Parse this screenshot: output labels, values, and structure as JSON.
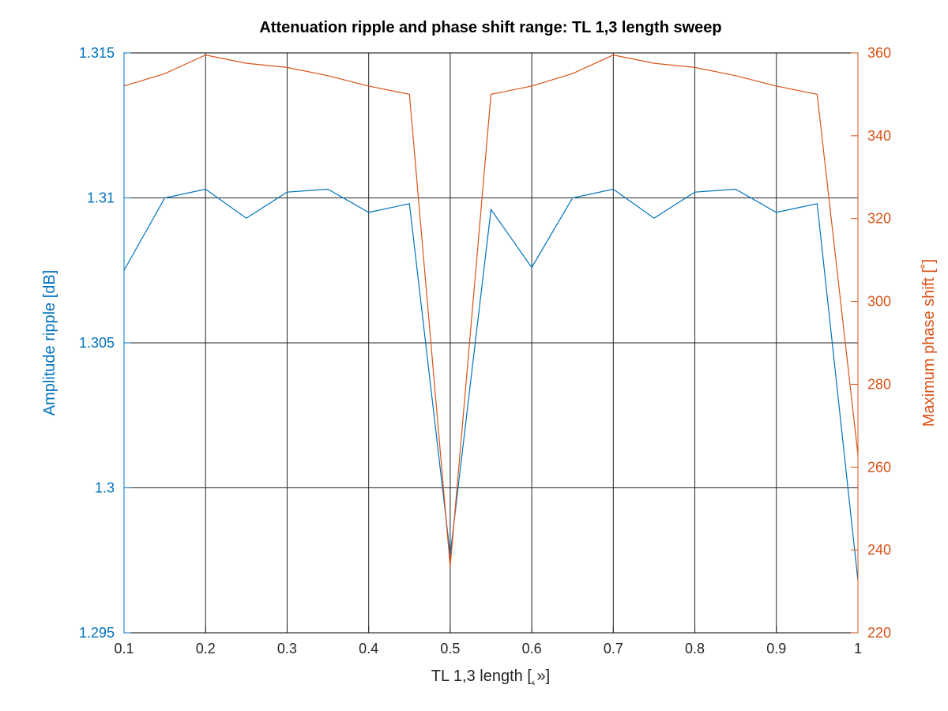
{
  "chart_data": {
    "type": "line",
    "title": "Attenuation ripple and phase shift range: TL 1,3 length sweep",
    "xlabel": "TL 1,3 length [˛»]",
    "ylabel_left": "Amplitude ripple [dB]",
    "ylabel_right": "Maximum phase shift [˚]",
    "xlim": [
      0.1,
      1.0
    ],
    "ylim_left": [
      1.295,
      1.315
    ],
    "ylim_right": [
      220,
      360
    ],
    "grid": true,
    "x_ticks": [
      "0.1",
      "0.2",
      "0.3",
      "0.4",
      "0.5",
      "0.6",
      "0.7",
      "0.8",
      "0.9",
      "1"
    ],
    "y_ticks_left": [
      "1.295",
      "1.3",
      "1.305",
      "1.31",
      "1.315"
    ],
    "y_ticks_right": [
      "220",
      "240",
      "260",
      "280",
      "300",
      "320",
      "340",
      "360"
    ],
    "x": [
      0.1,
      0.15,
      0.2,
      0.25,
      0.3,
      0.35,
      0.4,
      0.45,
      0.5,
      0.55,
      0.6,
      0.65,
      0.7,
      0.75,
      0.8,
      0.85,
      0.9,
      0.95,
      1.0
    ],
    "series": [
      {
        "axis": "left",
        "color": "#0072BD",
        "values": [
          1.3075,
          1.31,
          1.3103,
          1.3093,
          1.3102,
          1.3103,
          1.3095,
          1.3098,
          1.2977,
          1.3096,
          1.3076,
          1.31,
          1.3103,
          1.3093,
          1.3102,
          1.3103,
          1.3095,
          1.3098,
          1.2968
        ]
      },
      {
        "axis": "right",
        "color": "#D95319",
        "values": [
          352,
          355,
          359.5,
          357.5,
          356.5,
          354.5,
          352,
          350,
          236,
          350,
          352,
          355,
          359.5,
          357.5,
          356.5,
          354.5,
          352,
          350,
          263
        ]
      }
    ]
  }
}
